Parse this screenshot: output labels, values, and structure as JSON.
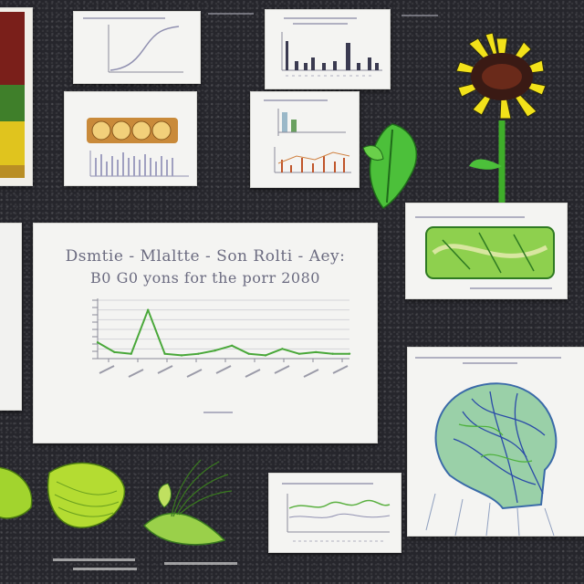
{
  "main_chart": {
    "title_line1": "Dsmtie - Mlaltte - Son Rolti - Aey:",
    "title_line2": "B0 G0 yons for the porr 2080",
    "chart_data": {
      "type": "line",
      "title": "Dsmtie - Mlaltte - Son Rolti - Aey: B0 G0 yons for the porr 2080",
      "x": [
        1,
        2,
        3,
        4,
        5,
        6,
        7,
        8,
        9,
        10,
        11,
        12,
        13,
        14,
        15,
        16
      ],
      "series": [
        {
          "values": [
            10,
            4,
            3,
            30,
            3,
            2,
            3,
            5,
            8,
            3,
            2,
            6,
            3,
            4,
            3,
            3
          ]
        }
      ],
      "ylim": [
        0,
        36
      ],
      "grid": true,
      "line_color": "#4aa83a"
    }
  },
  "colors": {
    "background": "#26262c",
    "card": "#f4f4f2",
    "plant_green": "#6cc43a",
    "sunflower_yellow": "#f2e21a",
    "scribble": "#9a9ab0"
  },
  "icons": [
    "sunflower-icon",
    "leaf-icon",
    "fern-icon",
    "head-illustration-icon",
    "lime-slice-icon"
  ]
}
